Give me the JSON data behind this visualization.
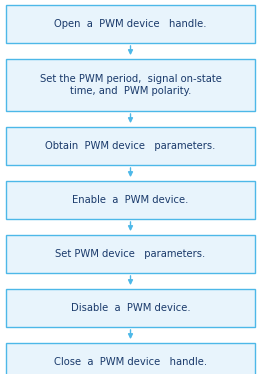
{
  "boxes": [
    {
      "text": "Open  a  PWM device   handle.",
      "lines": 1
    },
    {
      "text": "Set the PWM period,  signal on-state\ntime, and  PWM polarity.",
      "lines": 2
    },
    {
      "text": "Obtain  PWM device   parameters.",
      "lines": 1
    },
    {
      "text": "Enable  a  PWM device.",
      "lines": 1
    },
    {
      "text": "Set PWM device   parameters.",
      "lines": 1
    },
    {
      "text": "Disable  a  PWM device.",
      "lines": 1
    },
    {
      "text": "Close  a  PWM device   handle.",
      "lines": 1
    }
  ],
  "box_facecolor": "#e8f4fc",
  "box_edgecolor": "#4db8e8",
  "text_color": "#1a3a6b",
  "arrow_color": "#4db8e8",
  "bg_color": "#ffffff",
  "fig_width": 2.61,
  "fig_height": 3.74,
  "dpi": 100
}
